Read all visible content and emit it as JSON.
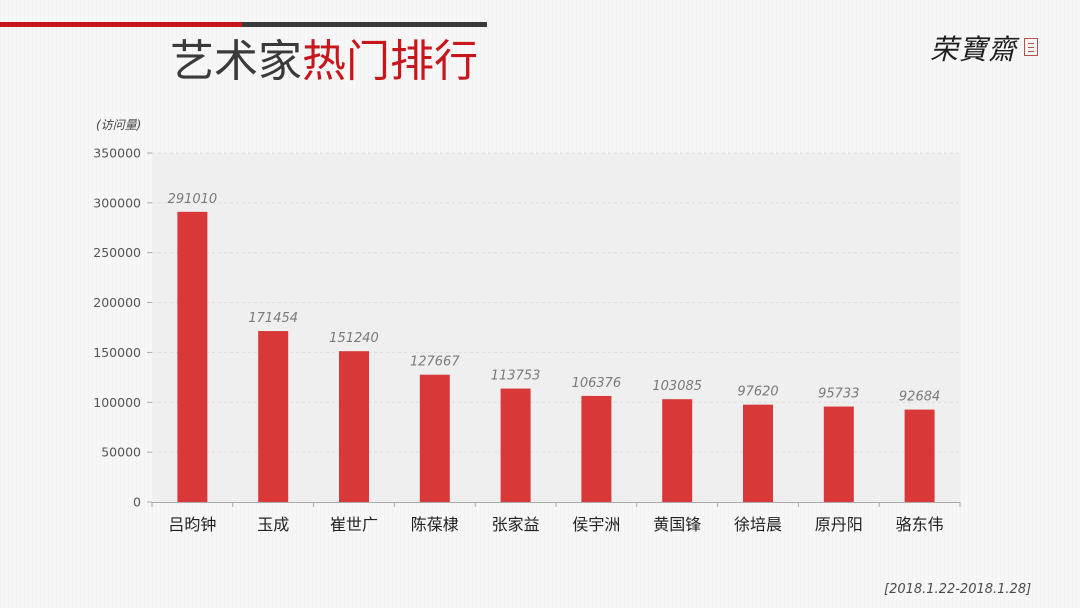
{
  "header": {
    "title_part1": "艺术家",
    "title_part2": "热门排行",
    "logo_text": "荣寶齋"
  },
  "colors": {
    "brand_red": "#c8161d",
    "bar_red": "#d83838",
    "dark": "#3a3a3a"
  },
  "chart_data": {
    "type": "bar",
    "unit_label": "(访问量)",
    "categories": [
      "吕昀钟",
      "玉成",
      "崔世广",
      "陈葆棣",
      "张家益",
      "侯宇洲",
      "黄国锋",
      "徐培晨",
      "原丹阳",
      "骆东伟"
    ],
    "values": [
      291010,
      171454,
      151240,
      127667,
      113753,
      106376,
      103085,
      97620,
      95733,
      92684
    ],
    "ylim": [
      0,
      350000
    ],
    "yticks": [
      0,
      50000,
      100000,
      150000,
      200000,
      250000,
      300000,
      350000
    ],
    "grid": true,
    "legend": "none",
    "data_labels": true
  },
  "footer": {
    "date_range": "[2018.1.22-2018.1.28]"
  }
}
